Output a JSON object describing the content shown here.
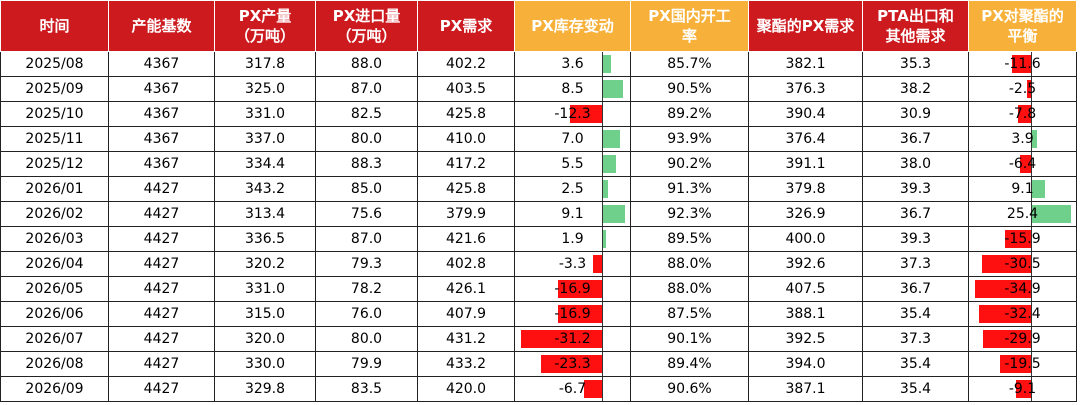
{
  "table": {
    "header": [
      "时间",
      "产能基数",
      "PX产量\n（万吨）",
      "PX进口量\n（万吨）",
      "PX需求",
      "PX库存变动",
      "PX国内开工\n率",
      "聚酯的PX需求",
      "PTA出口和\n其他需求",
      "PX对聚酯的\n平衡"
    ],
    "rows": [
      [
        "2025/08",
        "4367",
        "317.8",
        "88.0",
        "402.2",
        "3.6",
        "85.7%",
        "382.1",
        "35.3",
        "-11.6"
      ],
      [
        "2025/09",
        "4367",
        "325.0",
        "87.0",
        "403.5",
        "8.5",
        "90.5%",
        "376.3",
        "38.2",
        "-2.5"
      ],
      [
        "2025/10",
        "4367",
        "331.0",
        "82.5",
        "425.8",
        "-12.3",
        "89.2%",
        "390.4",
        "30.9",
        "-7.8"
      ],
      [
        "2025/11",
        "4367",
        "337.0",
        "80.0",
        "410.0",
        "7.0",
        "93.9%",
        "376.4",
        "36.7",
        "3.9"
      ],
      [
        "2025/12",
        "4367",
        "334.4",
        "88.3",
        "417.2",
        "5.5",
        "90.2%",
        "391.1",
        "38.0",
        "-6.4"
      ],
      [
        "2026/01",
        "4427",
        "343.2",
        "85.0",
        "425.8",
        "2.5",
        "91.3%",
        "379.8",
        "39.3",
        "9.1"
      ],
      [
        "2026/02",
        "4427",
        "313.4",
        "75.6",
        "379.9",
        "9.1",
        "92.3%",
        "326.9",
        "36.7",
        "25.4"
      ],
      [
        "2026/03",
        "4427",
        "336.5",
        "87.0",
        "421.6",
        "1.9",
        "89.5%",
        "400.0",
        "39.3",
        "-15.9"
      ],
      [
        "2026/04",
        "4427",
        "320.2",
        "79.3",
        "402.8",
        "-3.3",
        "88.0%",
        "392.6",
        "37.3",
        "-30.5"
      ],
      [
        "2026/05",
        "4427",
        "331.0",
        "78.2",
        "426.1",
        "-16.9",
        "88.0%",
        "407.5",
        "36.7",
        "-34.9"
      ],
      [
        "2026/06",
        "4427",
        "315.0",
        "76.0",
        "407.9",
        "-16.9",
        "87.5%",
        "388.1",
        "35.4",
        "-32.4"
      ],
      [
        "2026/07",
        "4427",
        "320.0",
        "80.0",
        "431.2",
        "-31.2",
        "90.1%",
        "392.5",
        "37.3",
        "-29.9"
      ],
      [
        "2026/08",
        "4427",
        "330.0",
        "79.9",
        "433.2",
        "-23.3",
        "89.4%",
        "394.0",
        "35.4",
        "-19.5"
      ],
      [
        "2026/09",
        "4427",
        "329.8",
        "83.5",
        "420.0",
        "-6.7",
        "90.6%",
        "387.1",
        "35.4",
        "-9.1"
      ]
    ]
  }
}
